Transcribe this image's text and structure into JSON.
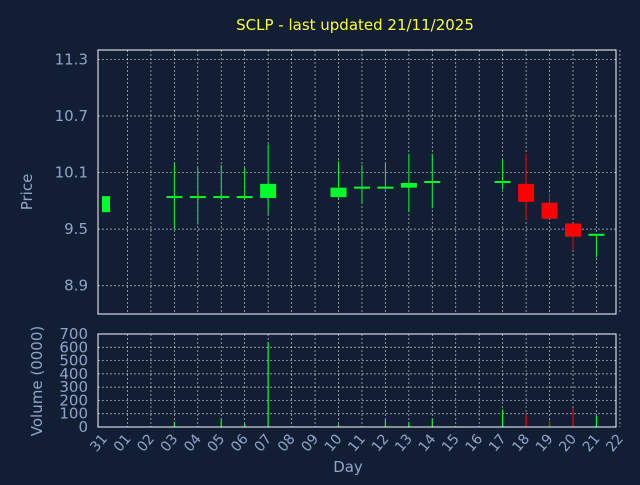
{
  "chart_data": [
    {
      "type": "candlestick",
      "title": "SCLP - last updated 21/11/2025",
      "ylabel": "Price",
      "ylim": [
        8.6,
        11.4
      ],
      "yticks": [
        "11.3",
        "10.7",
        "10.1",
        "9.5",
        "8.9"
      ],
      "grid": true,
      "colors": {
        "up": "#00ff2a",
        "down": "#ff0000",
        "background": "#111e33",
        "grid": "#ffffff",
        "title": "#ffff33",
        "axis_text": "#8fa6c9"
      },
      "candles": [
        {
          "day": "31",
          "open": 9.68,
          "close": 9.85,
          "high": 9.85,
          "low": 9.68
        },
        {
          "day": "03",
          "open": 9.82,
          "close": 9.84,
          "high": 10.2,
          "low": 9.5
        },
        {
          "day": "04",
          "open": 9.82,
          "close": 9.84,
          "high": 10.15,
          "low": 9.55
        },
        {
          "day": "05",
          "open": 9.82,
          "close": 9.84,
          "high": 10.18,
          "low": 9.82
        },
        {
          "day": "06",
          "open": 9.82,
          "close": 9.84,
          "high": 10.15,
          "low": 9.82
        },
        {
          "day": "07",
          "open": 9.83,
          "close": 9.98,
          "high": 10.4,
          "low": 9.66
        },
        {
          "day": "10",
          "open": 9.84,
          "close": 9.94,
          "high": 10.22,
          "low": 9.82
        },
        {
          "day": "11",
          "open": 9.92,
          "close": 9.94,
          "high": 10.18,
          "low": 9.77
        },
        {
          "day": "12",
          "open": 9.92,
          "close": 9.94,
          "high": 10.2,
          "low": 9.92
        },
        {
          "day": "13",
          "open": 9.94,
          "close": 9.99,
          "high": 10.3,
          "low": 9.68
        },
        {
          "day": "14",
          "open": 9.98,
          "close": 10.0,
          "high": 10.3,
          "low": 9.72
        },
        {
          "day": "17",
          "open": 9.98,
          "close": 10.0,
          "high": 10.24,
          "low": 9.92
        },
        {
          "day": "18",
          "open": 9.98,
          "close": 9.79,
          "high": 10.3,
          "low": 9.6
        },
        {
          "day": "19",
          "open": 9.78,
          "close": 9.61,
          "high": 9.88,
          "low": 9.61
        },
        {
          "day": "20",
          "open": 9.56,
          "close": 9.42,
          "high": 9.56,
          "low": 9.28
        },
        {
          "day": "21",
          "open": 9.42,
          "close": 9.44,
          "high": 9.44,
          "low": 9.2
        }
      ]
    },
    {
      "type": "bar",
      "ylabel": "Volume (0000)",
      "xlabel": "Day",
      "ylim": [
        0,
        700
      ],
      "yticks": [
        "700",
        "600",
        "500",
        "400",
        "300",
        "200",
        "100",
        "0"
      ],
      "categories": [
        "31",
        "01",
        "02",
        "03",
        "04",
        "05",
        "06",
        "07",
        "08",
        "09",
        "10",
        "11",
        "12",
        "13",
        "14",
        "15",
        "16",
        "17",
        "18",
        "19",
        "20",
        "21",
        "22"
      ],
      "bars": [
        {
          "day": "03",
          "value": 40,
          "color": "#00ff2a"
        },
        {
          "day": "05",
          "value": 60,
          "color": "#00ff2a"
        },
        {
          "day": "06",
          "value": 25,
          "color": "#00ff2a"
        },
        {
          "day": "07",
          "value": 640,
          "color": "#00ff2a"
        },
        {
          "day": "10",
          "value": 20,
          "color": "#00ff2a"
        },
        {
          "day": "12",
          "value": 60,
          "color": "#00ff2a"
        },
        {
          "day": "13",
          "value": 35,
          "color": "#00ff2a"
        },
        {
          "day": "14",
          "value": 60,
          "color": "#00ff2a"
        },
        {
          "day": "17",
          "value": 130,
          "color": "#00ff2a"
        },
        {
          "day": "18",
          "value": 95,
          "color": "#ff0000"
        },
        {
          "day": "19",
          "value": 50,
          "color": "#ff0000"
        },
        {
          "day": "20",
          "value": 140,
          "color": "#ff0000"
        },
        {
          "day": "21",
          "value": 85,
          "color": "#00ff2a"
        }
      ]
    }
  ]
}
